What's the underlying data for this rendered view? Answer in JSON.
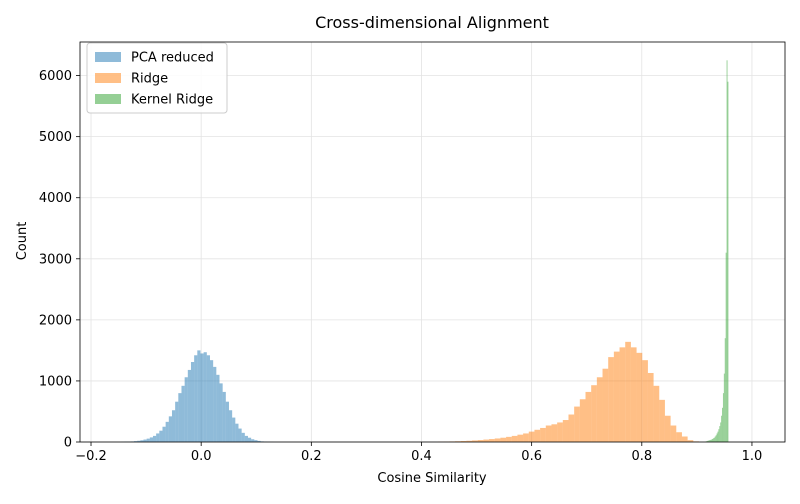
{
  "chart_data": {
    "type": "histogram",
    "title": "Cross-dimensional Alignment",
    "xlabel": "Cosine Similarity",
    "ylabel": "Count",
    "xlim": [
      -0.22,
      1.06
    ],
    "ylim": [
      0,
      6550
    ],
    "xticks": [
      -0.2,
      0.0,
      0.2,
      0.4,
      0.6,
      0.8,
      1.0
    ],
    "xtick_labels": [
      "−0.2",
      "0.0",
      "0.2",
      "0.4",
      "0.6",
      "0.8",
      "1.0"
    ],
    "yticks": [
      0,
      1000,
      2000,
      3000,
      4000,
      5000,
      6000
    ],
    "ytick_labels": [
      "0",
      "1000",
      "2000",
      "3000",
      "4000",
      "5000",
      "6000"
    ],
    "grid": true,
    "legend_position": "upper-left",
    "series": [
      {
        "name": "PCA reduced",
        "color": "#1f77b4",
        "alpha": 0.5,
        "bin_start": -0.145,
        "bin_width": 0.00575,
        "counts": [
          2,
          5,
          6,
          9,
          14,
          20,
          28,
          40,
          55,
          75,
          100,
          140,
          185,
          250,
          330,
          420,
          520,
          660,
          800,
          920,
          1060,
          1180,
          1310,
          1420,
          1500,
          1450,
          1470,
          1420,
          1340,
          1230,
          1100,
          960,
          820,
          660,
          520,
          400,
          300,
          220,
          150,
          100,
          70,
          45,
          30,
          18,
          10,
          6,
          4,
          2
        ]
      },
      {
        "name": "Ridge",
        "color": "#ff7f0e",
        "alpha": 0.5,
        "bin_start": 0.43,
        "bin_width": 0.0103,
        "counts": [
          4,
          6,
          9,
          12,
          16,
          20,
          26,
          32,
          40,
          48,
          58,
          70,
          84,
          100,
          120,
          140,
          170,
          200,
          230,
          270,
          290,
          320,
          360,
          450,
          580,
          700,
          820,
          930,
          1060,
          1200,
          1390,
          1480,
          1550,
          1640,
          1550,
          1460,
          1340,
          1130,
          920,
          690,
          430,
          270,
          160,
          90,
          30,
          10
        ]
      },
      {
        "name": "Kernel Ridge",
        "color": "#2ca02c",
        "alpha": 0.5,
        "bin_start": 0.916,
        "bin_width": 0.00165,
        "counts": [
          10,
          15,
          20,
          25,
          30,
          35,
          40,
          50,
          60,
          70,
          90,
          110,
          140,
          170,
          210,
          260,
          320,
          430,
          560,
          800,
          1120,
          1700,
          3100,
          6250,
          5900
        ]
      }
    ]
  }
}
